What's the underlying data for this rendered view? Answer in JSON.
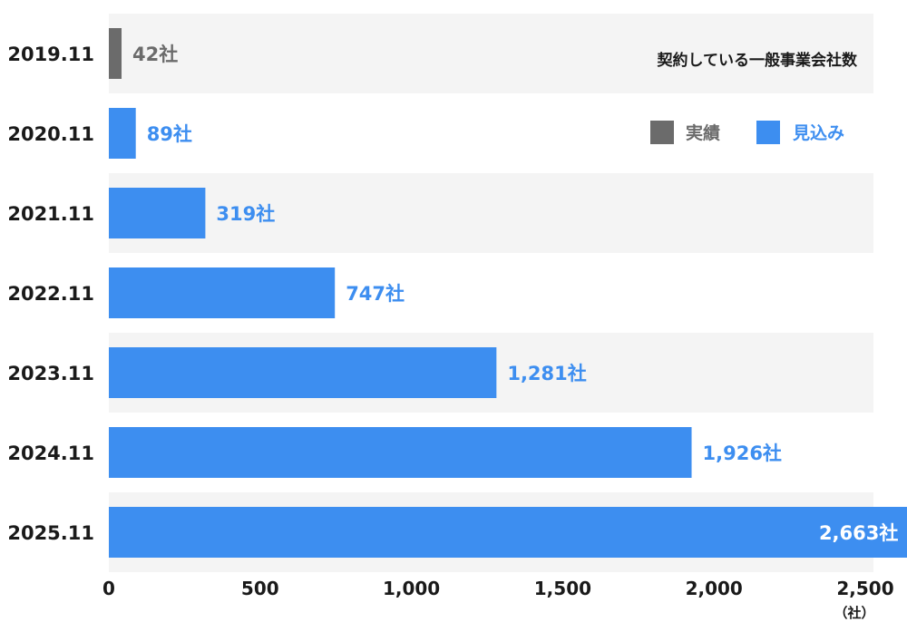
{
  "chart_data": {
    "type": "bar",
    "orientation": "horizontal",
    "title": "契約している一般事業会社数",
    "unit_label": "（社）",
    "value_suffix": "社",
    "categories": [
      "2019.11",
      "2020.11",
      "2021.11",
      "2022.11",
      "2023.11",
      "2024.11",
      "2025.11"
    ],
    "values": [
      42,
      89,
      319,
      747,
      1281,
      1926,
      2663
    ],
    "value_labels": [
      "42社",
      "89社",
      "319社",
      "747社",
      "1,281社",
      "1,926社",
      "2,663社"
    ],
    "kinds": [
      "実績",
      "見込み",
      "見込み",
      "見込み",
      "見込み",
      "見込み",
      "見込み"
    ],
    "xlim": [
      0,
      2500
    ],
    "xticks": [
      0,
      500,
      1000,
      1500,
      2000,
      2500
    ],
    "xtick_labels": [
      "0",
      "500",
      "1,000",
      "1,500",
      "2,000",
      "2,500"
    ],
    "legend": [
      {
        "label": "実績",
        "color": "#6b6b6b"
      },
      {
        "label": "見込み",
        "color": "#3d8ef0"
      }
    ],
    "legend_position": "top-right",
    "colors": {
      "actual": "#6b6b6b",
      "forecast": "#3d8ef0",
      "band": "#f4f4f4",
      "text": "#1a1a1a"
    }
  }
}
